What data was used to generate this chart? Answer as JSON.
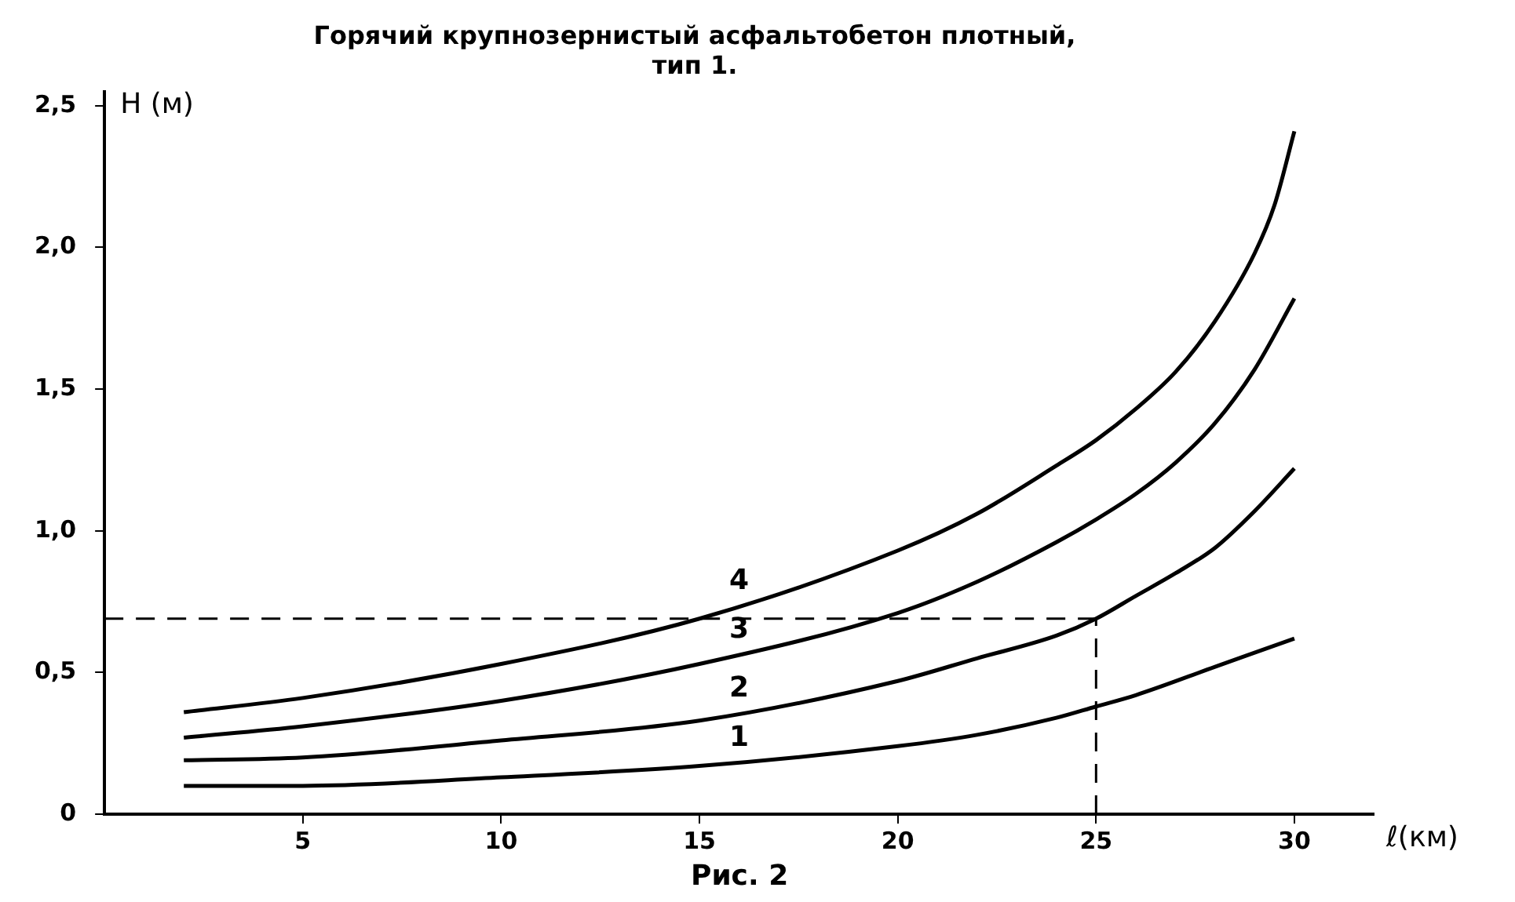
{
  "chart_data": {
    "type": "line",
    "title": [
      "Горячий крупнозернистый асфальтобетон плотный,",
      "тип 1."
    ],
    "xlabel": "ℓ(км)",
    "ylabel": "H (м)",
    "series": [
      {
        "name": "1",
        "color": "#000000",
        "x": [
          2,
          5,
          10,
          15,
          20,
          22,
          24,
          25,
          26,
          28,
          30
        ],
        "values": [
          0.1,
          0.1,
          0.13,
          0.17,
          0.24,
          0.28,
          0.34,
          0.38,
          0.42,
          0.52,
          0.62
        ]
      },
      {
        "name": "2",
        "color": "#000000",
        "x": [
          2,
          5,
          10,
          15,
          20,
          22,
          24,
          25,
          26,
          27,
          28,
          29,
          30
        ],
        "values": [
          0.19,
          0.2,
          0.26,
          0.33,
          0.47,
          0.55,
          0.63,
          0.69,
          0.77,
          0.85,
          0.94,
          1.07,
          1.22
        ]
      },
      {
        "name": "3",
        "color": "#000000",
        "x": [
          2,
          5,
          10,
          15,
          20,
          22,
          24,
          25,
          26,
          27,
          28,
          29,
          30
        ],
        "values": [
          0.27,
          0.31,
          0.4,
          0.53,
          0.71,
          0.82,
          0.96,
          1.04,
          1.13,
          1.24,
          1.38,
          1.57,
          1.82
        ]
      },
      {
        "name": "4",
        "color": "#000000",
        "x": [
          2,
          5,
          10,
          15,
          20,
          22,
          24,
          25,
          26,
          27,
          28,
          29,
          29.5,
          30
        ],
        "values": [
          0.36,
          0.41,
          0.53,
          0.69,
          0.93,
          1.06,
          1.23,
          1.32,
          1.43,
          1.56,
          1.74,
          1.98,
          2.15,
          2.41
        ]
      }
    ],
    "xlim": [
      0,
      32
    ],
    "ylim": [
      0,
      2.55
    ],
    "xticks": [
      5,
      10,
      15,
      20,
      25,
      30
    ],
    "yticks": [
      {
        "value": 0,
        "label": "0"
      },
      {
        "value": 0.5,
        "label": "0,5"
      },
      {
        "value": 1,
        "label": "1,0"
      },
      {
        "value": 1.5,
        "label": "1,5"
      },
      {
        "value": 2,
        "label": "2,0"
      },
      {
        "value": 2.5,
        "label": "2,5"
      }
    ],
    "grid": false,
    "legend": false,
    "marker": "none",
    "line_style": "solid",
    "ref_lines": [
      {
        "axis": "y",
        "value": 0.69,
        "line_style": "dashed",
        "color": "#000000"
      },
      {
        "axis": "x",
        "value": 25,
        "line_style": "dashed",
        "color": "#000000"
      }
    ],
    "annotations": [
      "Рис. 2"
    ]
  }
}
